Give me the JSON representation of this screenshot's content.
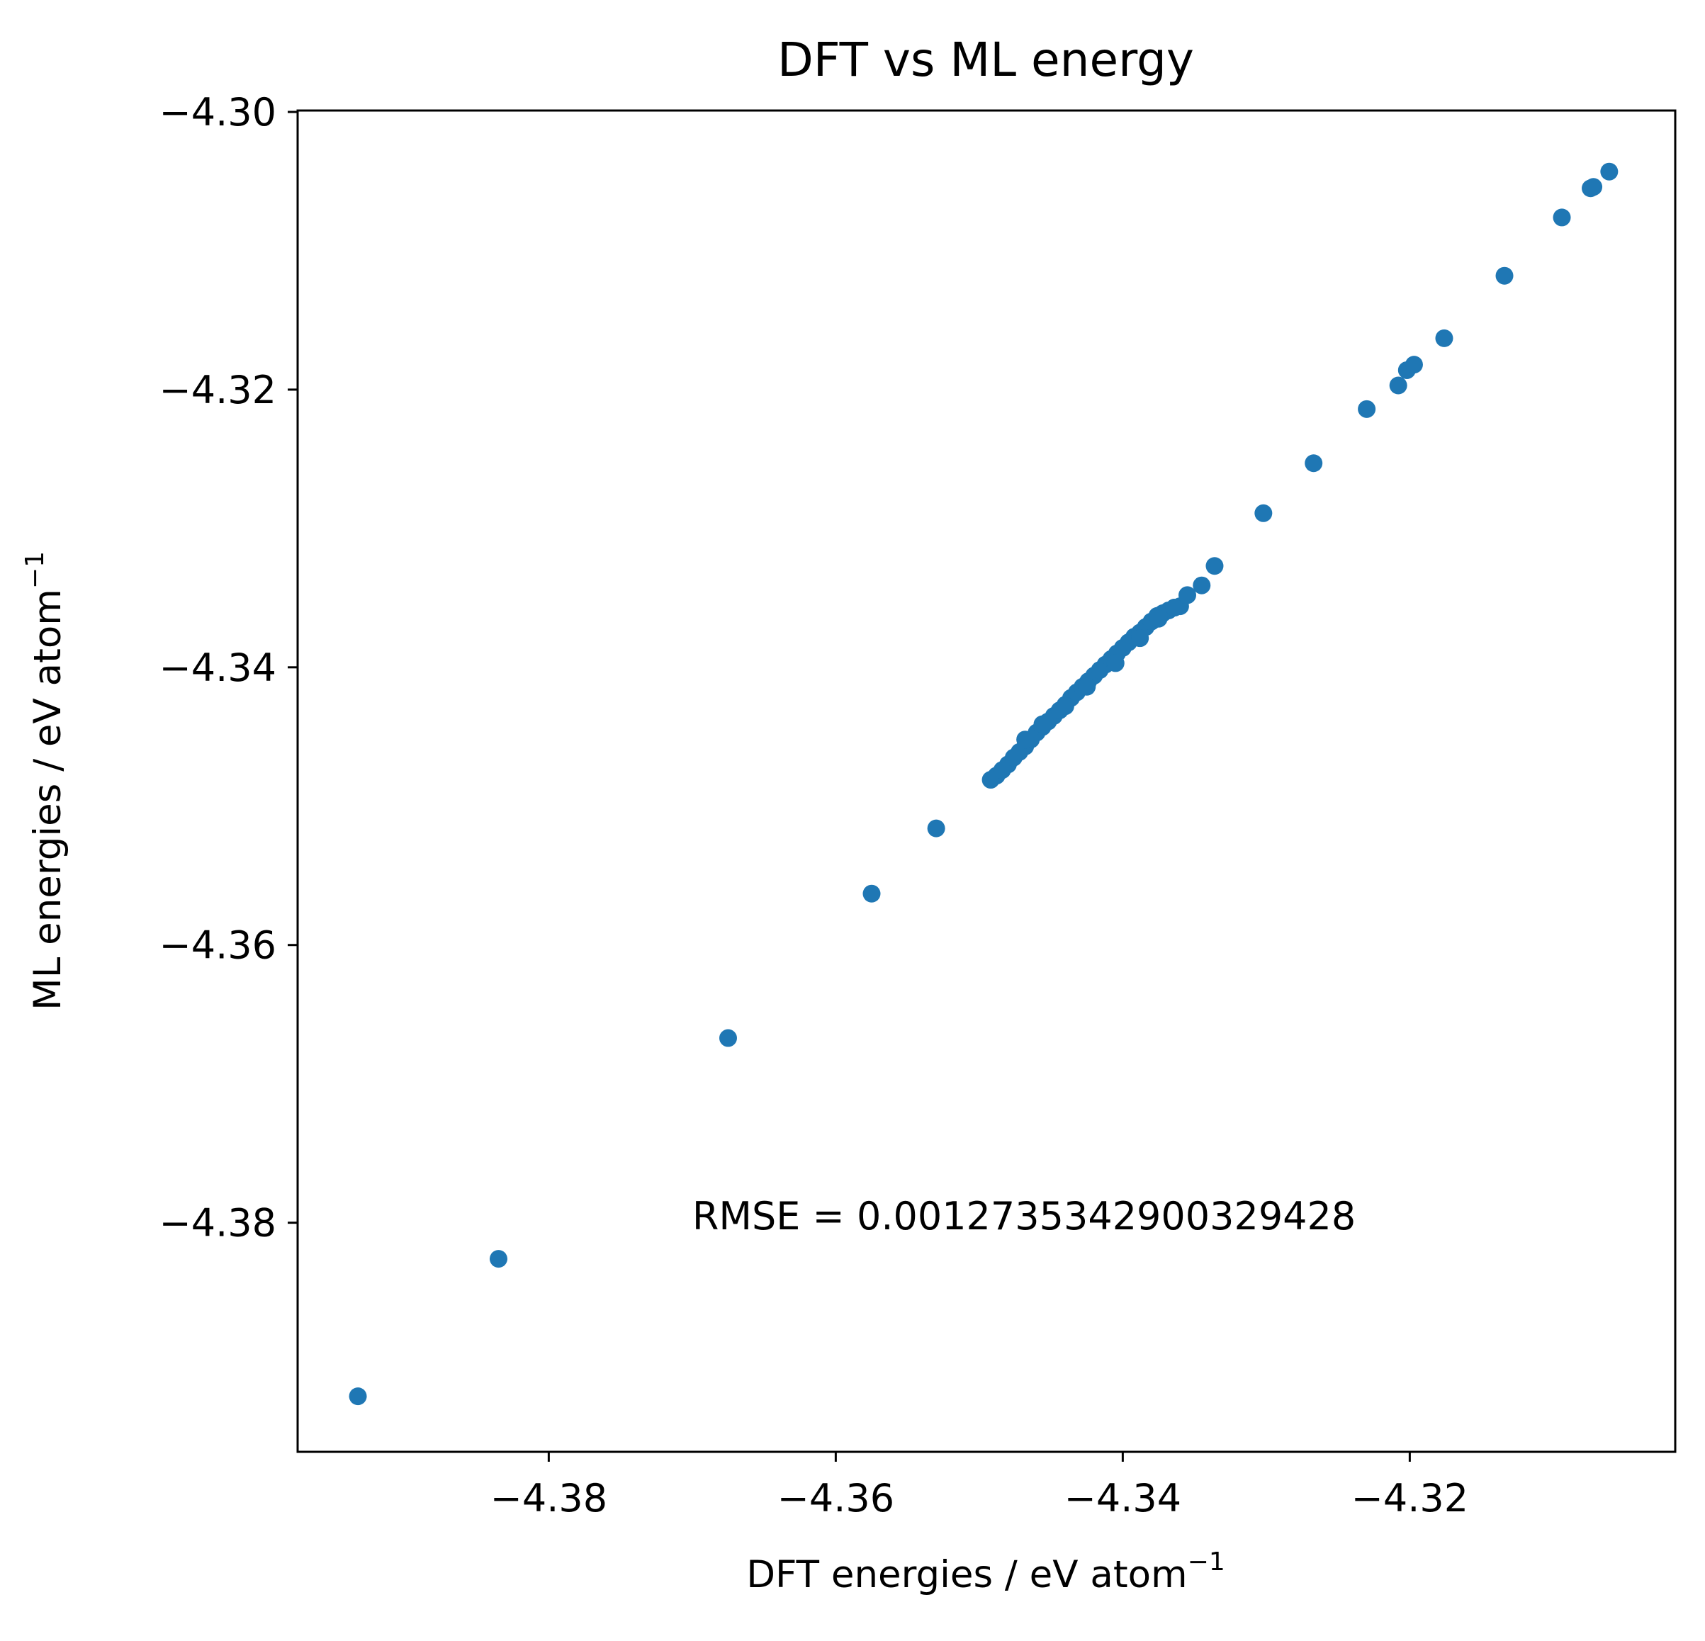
{
  "chart_data": {
    "type": "scatter",
    "title": "DFT vs ML energy",
    "xlabel": "DFT energies / eV atom",
    "ylabel": "ML energies / eV atom",
    "label_superscript": "−1",
    "annotation": "RMSE = 0.0012735342900329428",
    "annotation_position": {
      "x": -4.37,
      "y": -4.3795
    },
    "xlim": [
      -4.3975,
      -4.3015
    ],
    "ylim": [
      -4.3965,
      -4.2999
    ],
    "xticks": [
      -4.38,
      -4.36,
      -4.34,
      -4.32
    ],
    "xtick_labels": [
      "−4.38",
      "−4.36",
      "−4.34",
      "−4.32"
    ],
    "yticks": [
      -4.3,
      -4.32,
      -4.34,
      -4.36,
      -4.38
    ],
    "ytick_labels": [
      "−4.30",
      "−4.32",
      "−4.34",
      "−4.36",
      "−4.38"
    ],
    "grid": false,
    "legend": "none",
    "marker_color": "#1f77b4",
    "series": [
      {
        "x": [
          -4.3933,
          -4.3835,
          -4.3675,
          -4.3575,
          -4.353,
          -4.3492,
          -4.3488,
          -4.3484,
          -4.348,
          -4.3476,
          -4.3472,
          -4.3468,
          -4.3464,
          -4.346,
          -4.3456,
          -4.3452,
          -4.3448,
          -4.3444,
          -4.344,
          -4.3436,
          -4.3432,
          -4.3428,
          -4.3424,
          -4.342,
          -4.3416,
          -4.3412,
          -4.3408,
          -4.3404,
          -4.34,
          -4.3396,
          -4.3392,
          -4.3388,
          -4.3384,
          -4.338,
          -4.3376,
          -4.3372,
          -4.3368,
          -4.3364,
          -4.336,
          -4.3468,
          -4.3456,
          -4.344,
          -4.3425,
          -4.3405,
          -4.3388,
          -4.3375,
          -4.3364,
          -4.3355,
          -4.3345,
          -4.3336,
          -4.3302,
          -4.3267,
          -4.323,
          -4.3208,
          -4.3202,
          -4.3197,
          -4.3176,
          -4.3134,
          -4.3094,
          -4.3074,
          -4.3072,
          -4.3061
        ],
        "y": [
          -4.3925,
          -4.3826,
          -4.3667,
          -4.3563,
          -4.3516,
          -4.3481,
          -4.3478,
          -4.3474,
          -4.347,
          -4.3465,
          -4.3461,
          -4.3457,
          -4.3452,
          -4.3447,
          -4.3443,
          -4.3439,
          -4.3435,
          -4.3431,
          -4.3427,
          -4.3422,
          -4.3418,
          -4.3414,
          -4.341,
          -4.3406,
          -4.3402,
          -4.3398,
          -4.3394,
          -4.339,
          -4.3386,
          -4.3382,
          -4.3378,
          -4.3375,
          -4.3371,
          -4.3367,
          -4.3363,
          -4.3361,
          -4.3359,
          -4.3357,
          -4.3356,
          -4.3452,
          -4.3441,
          -4.3428,
          -4.3414,
          -4.3397,
          -4.3379,
          -4.3365,
          -4.3357,
          -4.3348,
          -4.3341,
          -4.3327,
          -4.3289,
          -4.3253,
          -4.3214,
          -4.3197,
          -4.3186,
          -4.3182,
          -4.3163,
          -4.3118,
          -4.3076,
          -4.3055,
          -4.3054,
          -4.3043
        ]
      }
    ]
  }
}
